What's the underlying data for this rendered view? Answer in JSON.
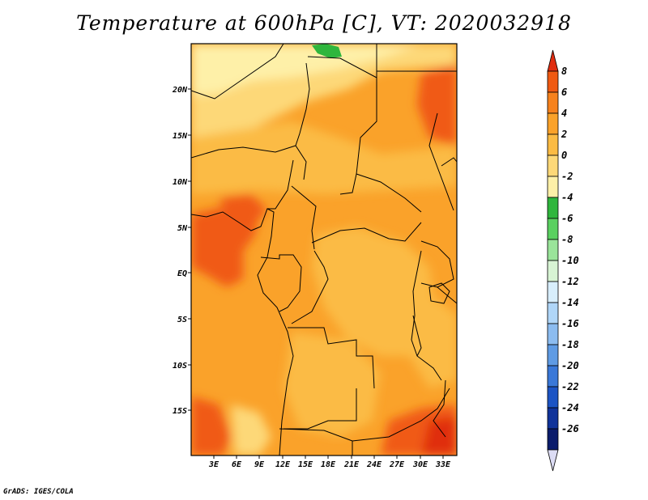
{
  "title": "Temperature at 600hPa [C], VT: 2020032918",
  "credit": "GrADS: IGES/COLA",
  "map": {
    "lat_labels": [
      "20N",
      "15N",
      "10N",
      "5N",
      "EQ",
      "5S",
      "10S",
      "15S"
    ],
    "lon_labels": [
      "3E",
      "6E",
      "9E",
      "12E",
      "15E",
      "18E",
      "21E",
      "24E",
      "27E",
      "30E",
      "33E"
    ]
  },
  "colorbar": {
    "labels": [
      "8",
      "6",
      "4",
      "2",
      "0",
      "-2",
      "-4",
      "-6",
      "-8",
      "-10",
      "-12",
      "-14",
      "-16",
      "-18",
      "-20",
      "-22",
      "-24",
      "-26"
    ],
    "colors": [
      "#e02d10",
      "#f05a12",
      "#f7821d",
      "#faa22a",
      "#fbbb44",
      "#fdd878",
      "#fef0a8",
      "#2fb63d",
      "#5ad060",
      "#9ae49a",
      "#d8f4d4",
      "#d8eefc",
      "#b0d6f8",
      "#8cbcf0",
      "#5f9be4",
      "#3a78d8",
      "#1c54c4",
      "#10339a",
      "#0b1c6c",
      "#dcdcf4"
    ]
  }
}
